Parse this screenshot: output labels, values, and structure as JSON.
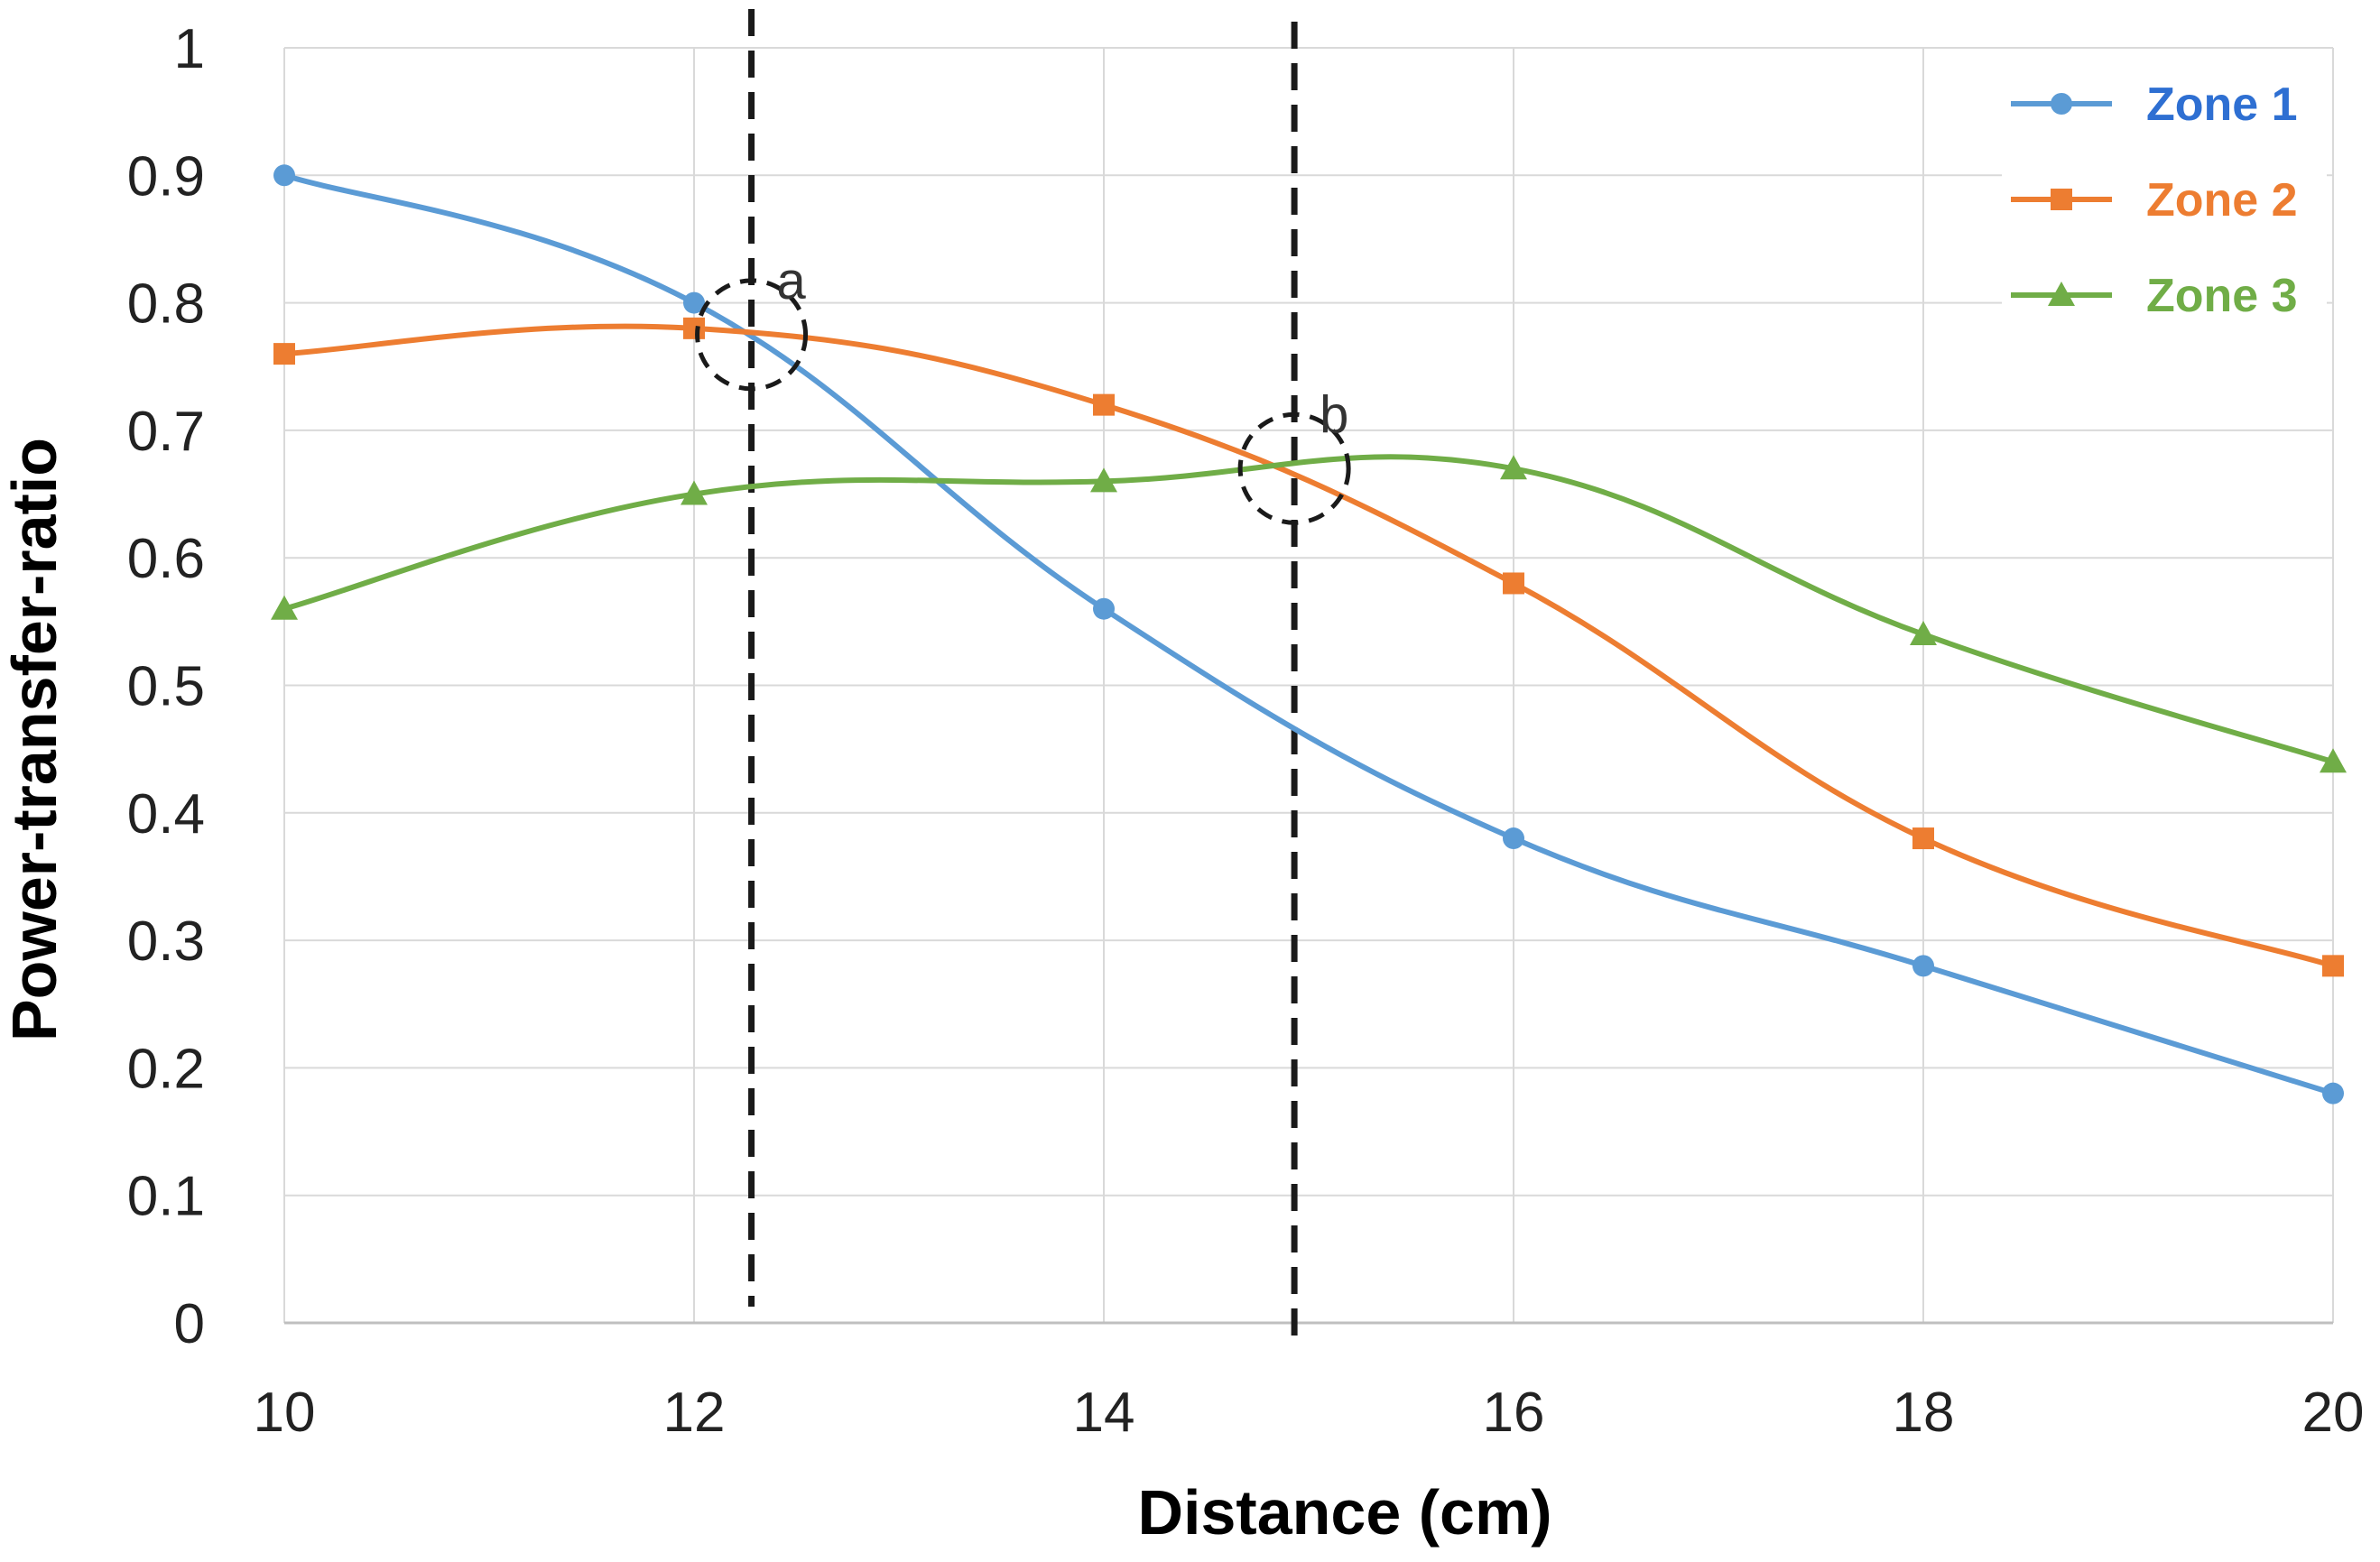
{
  "chart_data": {
    "type": "line",
    "title": "",
    "xlabel": "Distance (cm)",
    "ylabel": "Power-transfer-ratio",
    "x": [
      10,
      12,
      14,
      16,
      18,
      20
    ],
    "xlim": [
      10,
      20
    ],
    "ylim": [
      0,
      1
    ],
    "xticks": [
      10,
      12,
      14,
      16,
      18,
      20
    ],
    "xtick_labels": [
      "10",
      "12",
      "14",
      "16",
      "18",
      "20"
    ],
    "yticks": [
      0,
      0.1,
      0.2,
      0.3,
      0.4,
      0.5,
      0.6,
      0.7,
      0.8,
      0.9,
      1
    ],
    "ytick_labels": [
      "0",
      "0.1",
      "0.2",
      "0.3",
      "0.4",
      "0.5",
      "0.6",
      "0.7",
      "0.8",
      "0.9",
      "1"
    ],
    "grid": true,
    "legend_position": "top-right",
    "series": [
      {
        "name": "Zone 1",
        "color": "#5B9BD5",
        "label_color": "#2E6FD2",
        "marker": "circle",
        "values": [
          0.9,
          0.8,
          0.56,
          0.38,
          0.28,
          0.18
        ]
      },
      {
        "name": "Zone 2",
        "color": "#ED7D31",
        "label_color": "#ED7D31",
        "marker": "square",
        "values": [
          0.76,
          0.78,
          0.72,
          0.58,
          0.38,
          0.28
        ]
      },
      {
        "name": "Zone 3",
        "color": "#70AD47",
        "label_color": "#70AD47",
        "marker": "triangle",
        "values": [
          0.56,
          0.65,
          0.66,
          0.67,
          0.54,
          0.44
        ]
      }
    ],
    "annotations": [
      {
        "label": "a",
        "x": 12.28,
        "y": 0.775,
        "vline_x": 12.28
      },
      {
        "label": "b",
        "x": 14.93,
        "y": 0.67,
        "vline_x": 14.93
      }
    ]
  }
}
